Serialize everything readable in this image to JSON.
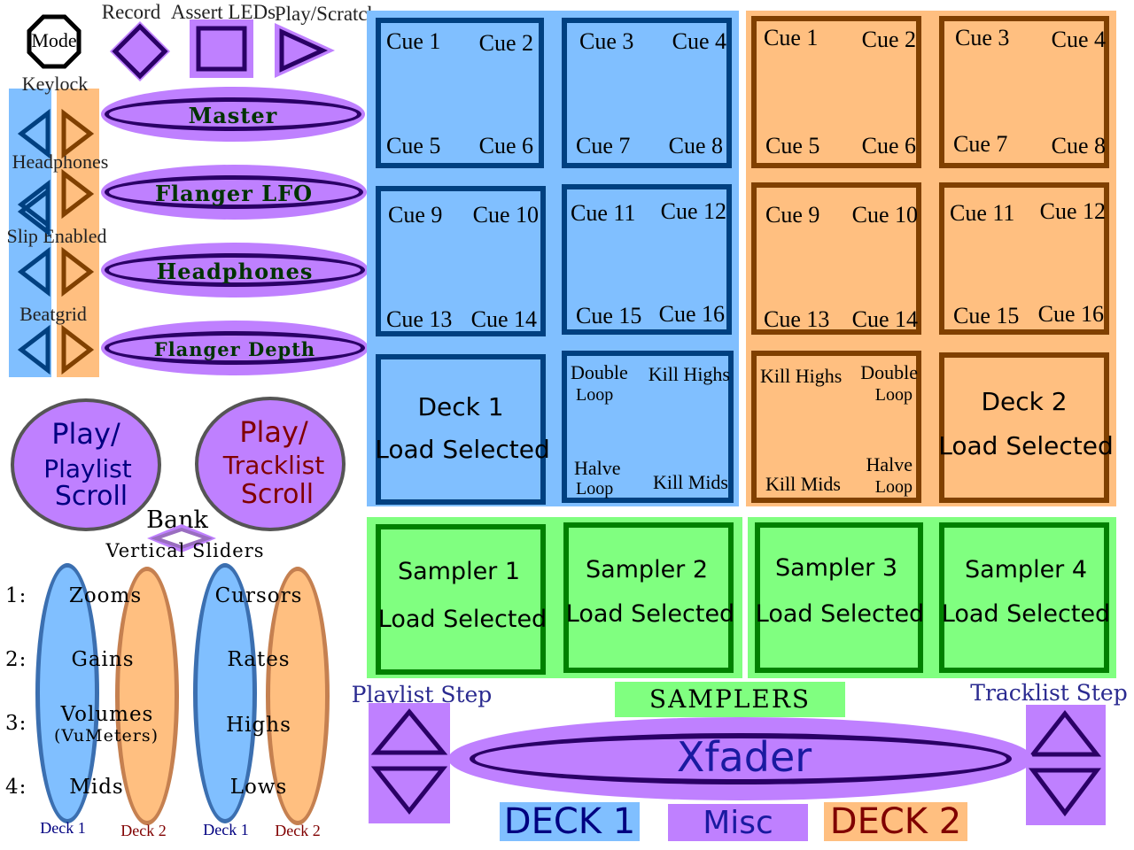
{
  "top": {
    "mode": "Mode",
    "record": "Record",
    "assert_leds": "Assert LEDs",
    "play_scratch": "Play/Scratch"
  },
  "left_buttons": {
    "keylock": "Keylock",
    "headphones": "Headphones",
    "slip_enabled": "Slip Enabled",
    "beatgrid": "Beatgrid"
  },
  "knobs": [
    "Master",
    "Flanger LFO",
    "Headphones",
    "Flanger Depth"
  ],
  "jogs": {
    "deck1": {
      "line1": "Play/",
      "line2": "Playlist",
      "line3": "Scroll"
    },
    "deck2": {
      "line1": "Play/",
      "line2": "Tracklist",
      "line3": "Scroll"
    }
  },
  "bank": "Bank",
  "vertical_sliders": {
    "title": "Vertical Sliders",
    "rows": [
      {
        "num": "1:",
        "left": "Zooms",
        "right": "Cursors"
      },
      {
        "num": "2:",
        "left": "Gains",
        "right": "Rates"
      },
      {
        "num": "3:",
        "left": "Volumes",
        "left_sub": "(VuMeters)",
        "right": "Highs"
      },
      {
        "num": "4:",
        "left": "Mids",
        "right": "Lows"
      }
    ],
    "deck_labels": [
      "Deck 1",
      "Deck 2",
      "Deck 1",
      "Deck 2"
    ]
  },
  "deck1_pads": {
    "p1": [
      "Cue 1",
      "Cue 2",
      "Cue 5",
      "Cue 6"
    ],
    "p2": [
      "Cue 3",
      "Cue 4",
      "Cue 7",
      "Cue 8"
    ],
    "p3": [
      "Cue 9",
      "Cue 10",
      "Cue 13",
      "Cue 14"
    ],
    "p4": [
      "Cue 11",
      "Cue 12",
      "Cue 15",
      "Cue 16"
    ],
    "load": {
      "line1": "Deck 1",
      "line2": "Load Selected"
    },
    "fx": {
      "dl1": "Double",
      "dl2": "Loop",
      "kh": "Kill Highs",
      "hl1": "Halve",
      "hl2": "Loop",
      "km": "Kill Mids"
    }
  },
  "deck2_pads": {
    "p1": [
      "Cue 1",
      "Cue 2",
      "Cue 5",
      "Cue 6"
    ],
    "p2": [
      "Cue 3",
      "Cue 4",
      "Cue 7",
      "Cue 8"
    ],
    "p3": [
      "Cue 9",
      "Cue 10",
      "Cue 13",
      "Cue 14"
    ],
    "p4": [
      "Cue 11",
      "Cue 12",
      "Cue 15",
      "Cue 16"
    ],
    "fx": {
      "kh": "Kill Highs",
      "dl1": "Double",
      "dl2": "Loop",
      "km": "Kill Mids",
      "hl1": "Halve",
      "hl2": "Loop"
    },
    "load": {
      "line1": "Deck 2",
      "line2": "Load Selected"
    }
  },
  "samplers": [
    {
      "name": "Sampler 1",
      "action": "Load Selected"
    },
    {
      "name": "Sampler 2",
      "action": "Load Selected"
    },
    {
      "name": "Sampler 3",
      "action": "Load Selected"
    },
    {
      "name": "Sampler 4",
      "action": "Load Selected"
    }
  ],
  "bottom": {
    "samplers_label": "SAMPLERS",
    "playlist_step": "Playlist Step",
    "tracklist_step": "Tracklist Step",
    "xfader": "Xfader",
    "deck1": "DECK 1",
    "misc": "Misc",
    "deck2": "DECK 2"
  },
  "colors": {
    "deck1": "#80bfff",
    "deck2": "#ffbf80",
    "sampler": "#80ff80",
    "misc": "#bf80ff",
    "deck1_text": "#000080",
    "deck2_text": "#800000"
  }
}
